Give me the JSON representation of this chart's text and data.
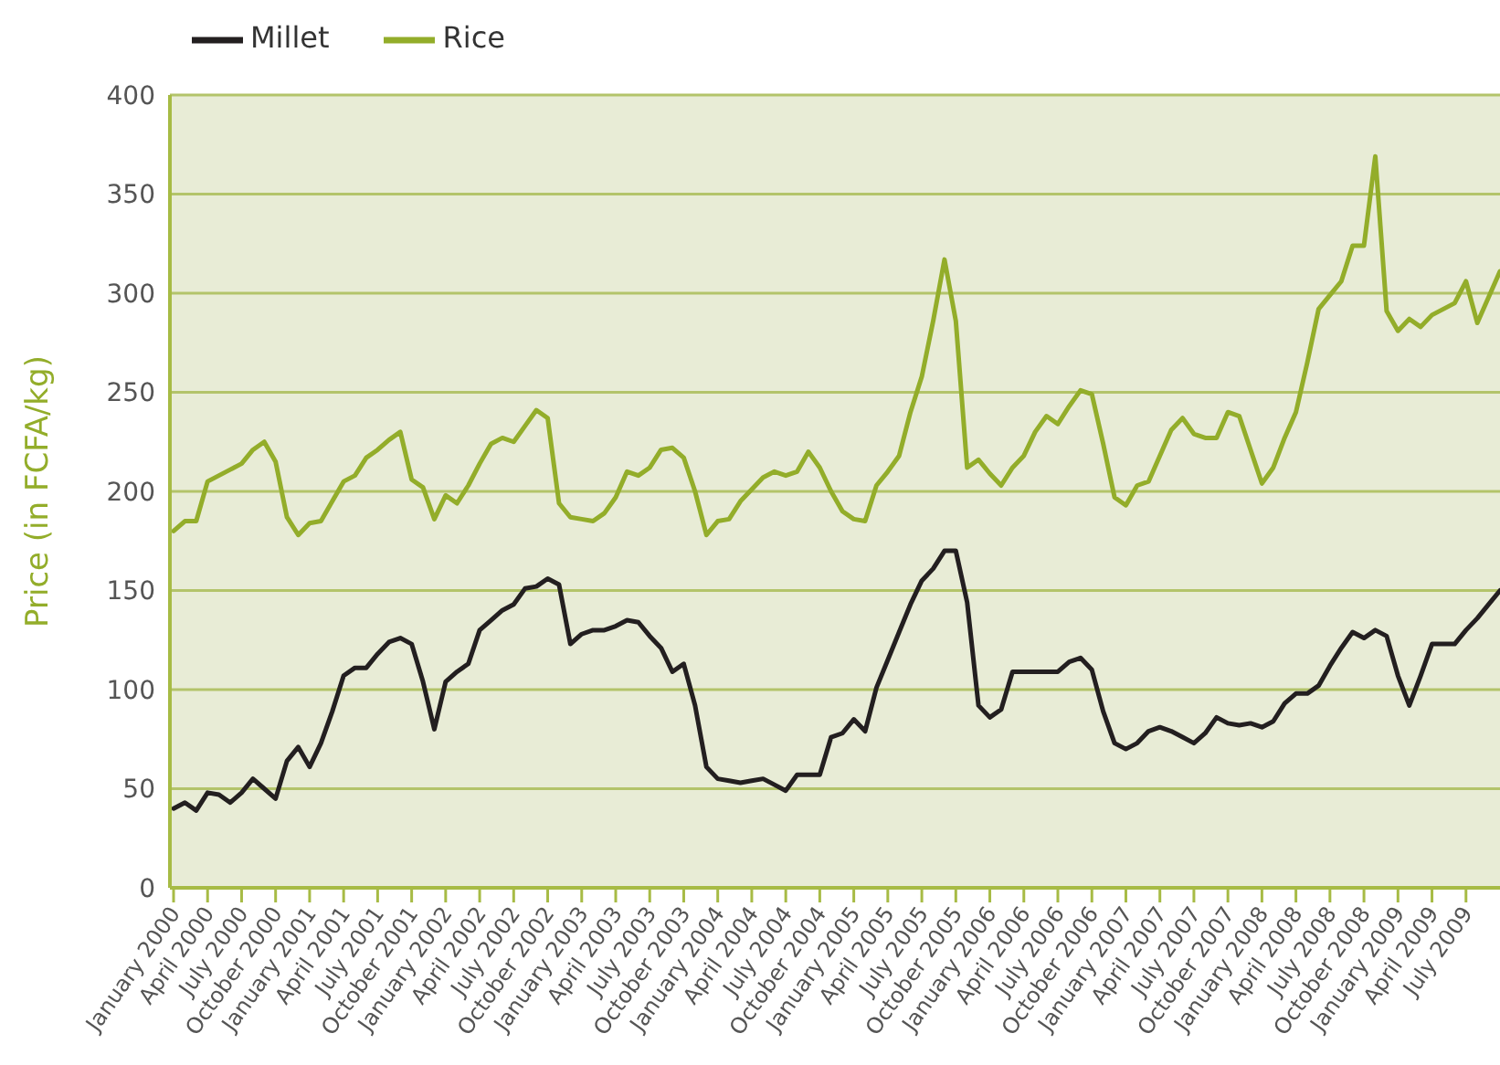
{
  "chart_data": {
    "type": "line",
    "ylabel": "Price (in FCFA/kg)",
    "categories": [
      "January 2000",
      null,
      null,
      "April 2000",
      null,
      null,
      "July 2000",
      null,
      null,
      "October 2000",
      null,
      null,
      "January 2001",
      null,
      null,
      "April 2001",
      null,
      null,
      "July 2001",
      null,
      null,
      "October 2001",
      null,
      null,
      "January 2002",
      null,
      null,
      "April 2002",
      null,
      null,
      "July 2002",
      null,
      null,
      "October 2002",
      null,
      null,
      "January 2003",
      null,
      null,
      "April 2003",
      null,
      null,
      "July 2003",
      null,
      null,
      "October 2003",
      null,
      null,
      "January 2004",
      null,
      null,
      "April 2004",
      null,
      null,
      "July 2004",
      null,
      null,
      "October 2004",
      null,
      null,
      "January 2005",
      null,
      null,
      "April 2005",
      null,
      null,
      "July 2005",
      null,
      null,
      "October 2005",
      null,
      null,
      "January 2006",
      null,
      null,
      "April 2006",
      null,
      null,
      "July 2006",
      null,
      null,
      "October 2006",
      null,
      null,
      "January 2007",
      null,
      null,
      "April 2007",
      null,
      null,
      "July 2007",
      null,
      null,
      "October 2007",
      null,
      null,
      "January 2008",
      null,
      null,
      "April 2008",
      null,
      null,
      "July 2008",
      null,
      null,
      "October 2008",
      null,
      null,
      "January 2009",
      null,
      null,
      "April 2009",
      null,
      null,
      "July 2009",
      null,
      null,
      null
    ],
    "series": [
      {
        "name": "Millet",
        "color": "#231f20",
        "values": [
          40,
          43,
          39,
          48,
          47,
          43,
          48,
          55,
          50,
          45,
          64,
          71,
          61,
          73,
          89,
          107,
          111,
          111,
          118,
          124,
          126,
          123,
          104,
          80,
          104,
          109,
          113,
          130,
          135,
          140,
          143,
          151,
          152,
          156,
          153,
          123,
          128,
          130,
          130,
          132,
          135,
          134,
          127,
          121,
          109,
          113,
          92,
          61,
          55,
          54,
          53,
          54,
          55,
          52,
          49,
          57,
          57,
          57,
          76,
          78,
          85,
          79,
          101,
          115,
          129,
          143,
          155,
          161,
          170,
          170,
          144,
          92,
          86,
          90,
          109,
          109,
          109,
          109,
          109,
          114,
          116,
          110,
          89,
          73,
          70,
          73,
          79,
          81,
          79,
          76,
          73,
          78,
          86,
          83,
          82,
          83,
          81,
          84,
          93,
          98,
          98,
          102,
          112,
          121,
          129,
          126,
          130,
          127,
          107,
          92,
          107,
          123,
          123,
          123,
          130,
          136,
          143,
          150
        ]
      },
      {
        "name": "Rice",
        "color": "#93ad2a",
        "values": [
          180,
          185,
          185,
          205,
          208,
          211,
          214,
          221,
          225,
          215,
          187,
          178,
          184,
          185,
          195,
          205,
          208,
          217,
          221,
          226,
          230,
          206,
          202,
          186,
          198,
          194,
          203,
          214,
          224,
          227,
          225,
          233,
          241,
          237,
          194,
          187,
          186,
          185,
          189,
          197,
          210,
          208,
          212,
          221,
          222,
          217,
          200,
          178,
          185,
          186,
          195,
          201,
          207,
          210,
          208,
          210,
          220,
          212,
          200,
          190,
          186,
          185,
          203,
          210,
          218,
          240,
          258,
          286,
          317,
          286,
          212,
          216,
          209,
          203,
          212,
          218,
          230,
          238,
          234,
          243,
          251,
          249,
          224,
          197,
          193,
          203,
          205,
          218,
          231,
          237,
          229,
          227,
          227,
          240,
          238,
          221,
          204,
          212,
          227,
          240,
          265,
          292,
          299,
          306,
          324,
          324,
          369,
          291,
          281,
          287,
          283,
          289,
          292,
          295,
          306,
          285,
          298,
          311
        ]
      }
    ],
    "ylim": [
      0,
      400
    ],
    "yticks": [
      0,
      50,
      100,
      150,
      200,
      250,
      300,
      350,
      400
    ],
    "grid": "y",
    "legend": "top left",
    "line_style": "solid",
    "marker": "none"
  }
}
